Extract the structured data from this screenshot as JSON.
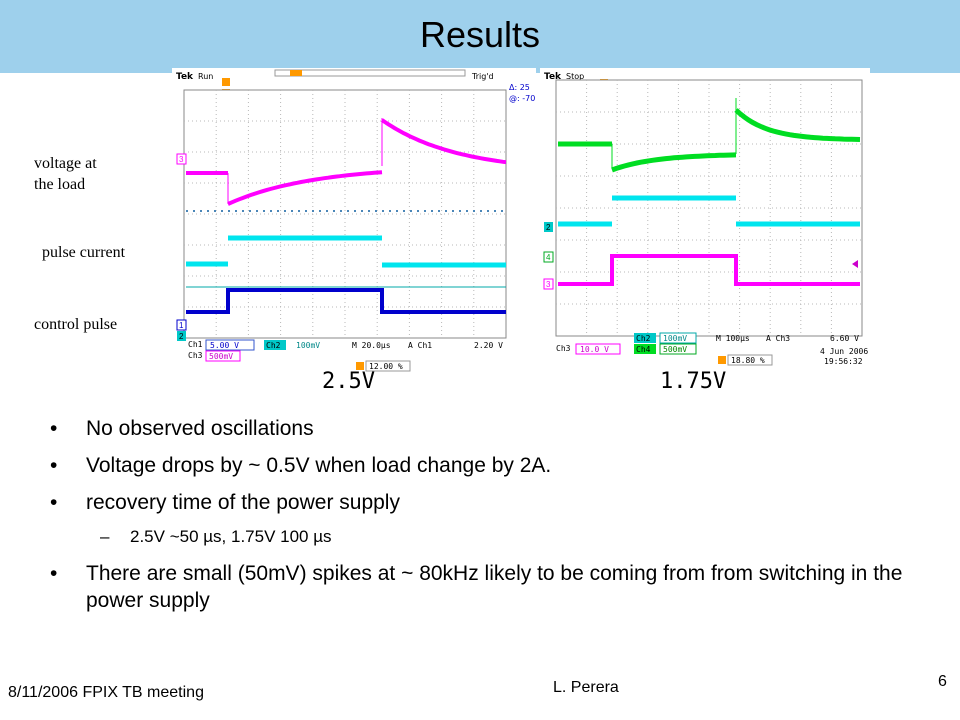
{
  "slide": {
    "title": "Results",
    "side_labels": {
      "voltage_line1": "voltage at",
      "voltage_line2": "the load",
      "pulse_current": "pulse current",
      "control_pulse": "control pulse"
    },
    "scope_left": {
      "brand": "Tek",
      "state": "Run",
      "trigger": "Trig'd",
      "cursor_delta": "Δ: 25",
      "cursor_at": "@: -70",
      "ch_markers": [
        "3",
        "1",
        "2"
      ],
      "ch1_label": "Ch1",
      "ch1_scale": "5.00 V",
      "ch2_label": "Ch2",
      "ch2_scale": "100mV",
      "timebase": "M 20.0µs",
      "trig_src": "A  Ch1",
      "trig_level": "2.20 V",
      "ch3_label": "Ch3",
      "ch3_scale": "500mV",
      "trig_pos": "12.00 %",
      "colors": {
        "ch3": "#ff00ff",
        "ch2": "#00e5ee",
        "ch1": "#0000cc",
        "ref": "#00a8a8"
      }
    },
    "scope_right": {
      "brand": "Tek",
      "state": "Stop",
      "ch_markers": [
        "2",
        "4",
        "3"
      ],
      "ch2_label": "Ch2",
      "ch2_scale": "100mV",
      "timebase": "M 100µs",
      "trig_src": "A  Ch3",
      "trig_level": "6.60 V",
      "ch3_label": "Ch3",
      "ch3_scale": "10.0 V",
      "ch4_label": "Ch4",
      "ch4_scale": "500mV",
      "trig_pos": "18.80 %",
      "date": "4 Jun 2006",
      "time": "19:56:32",
      "colors": {
        "ch4": "#00dd22",
        "ch2": "#00e5ee",
        "ch3": "#ff00ff"
      }
    },
    "voltage_labels": [
      "2.5V",
      "1.75V"
    ],
    "bullets": [
      {
        "text": "No observed oscillations",
        "level": 1
      },
      {
        "text": "Voltage drops by ~ 0.5V when load change by 2A.",
        "level": 1
      },
      {
        "text": "recovery time of the power supply",
        "level": 1
      },
      {
        "text": "2.5V ~50 µs,  1.75V 100 µs",
        "level": 2
      },
      {
        "text": "There are small (50mV) spikes at ~ 80kHz  likely to be coming from from switching in the power supply",
        "level": 1
      }
    ],
    "bullet_symbol": "•",
    "sub_bullet_symbol": "–",
    "footer": {
      "date_event": "8/11/2006  FPIX TB meeting",
      "author": "L. Perera",
      "page": "6"
    }
  }
}
